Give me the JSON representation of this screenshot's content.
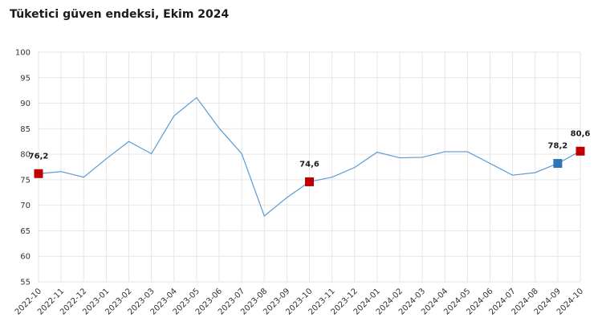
{
  "title": "Tüketici güven endeksi, Ekim 2024",
  "chart_data": {
    "type": "line",
    "title": "Tüketici güven endeksi, Ekim 2024",
    "xlabel": "",
    "ylabel": "",
    "ylim": [
      55,
      100
    ],
    "yticks": [
      55,
      60,
      65,
      70,
      75,
      80,
      85,
      90,
      95,
      100
    ],
    "grid": true,
    "categories": [
      "2022-10",
      "2022-11",
      "2022-12",
      "2023-01",
      "2023-02",
      "2023-03",
      "2023-04",
      "2023-05",
      "2023-06",
      "2023-07",
      "2023-08",
      "2023-09",
      "2023-10",
      "2023-11",
      "2023-12",
      "2024-01",
      "2024-02",
      "2024-03",
      "2024-04",
      "2024-05",
      "2024-06",
      "2024-07",
      "2024-08",
      "2024-09",
      "2024-10"
    ],
    "series": [
      {
        "values": [
          76.2,
          76.6,
          75.5,
          79.1,
          82.5,
          80.1,
          87.5,
          91.1,
          85.1,
          80.1,
          67.9,
          71.5,
          74.6,
          75.5,
          77.4,
          80.4,
          79.3,
          79.4,
          80.5,
          80.5,
          78.2,
          75.9,
          76.4,
          78.2,
          80.6
        ],
        "color": "#5b9bd5"
      }
    ],
    "highlights": [
      {
        "index": 0,
        "label": "76,2",
        "color": "#c00000"
      },
      {
        "index": 12,
        "label": "74,6",
        "color": "#c00000"
      },
      {
        "index": 23,
        "label": "78,2",
        "color": "#2e75b6"
      },
      {
        "index": 24,
        "label": "80,6",
        "color": "#c00000"
      }
    ]
  }
}
